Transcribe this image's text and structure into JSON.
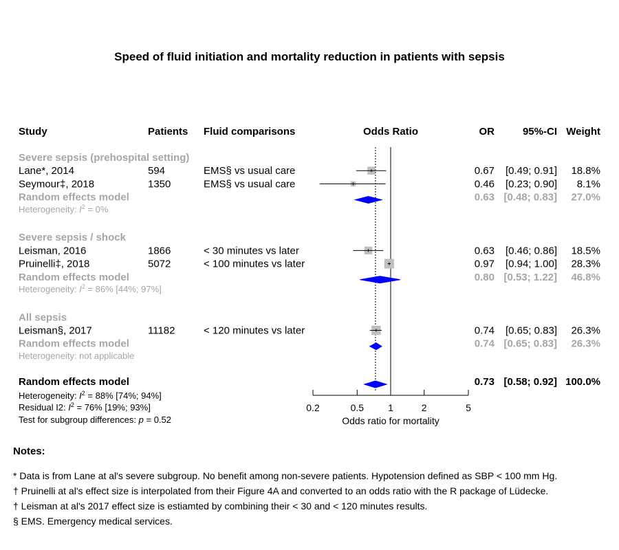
{
  "chart_data": {
    "type": "forest",
    "title": "Speed of fluid initiation and mortality reduction in patients with sepsis",
    "columns": {
      "study": "Study",
      "patients": "Patients",
      "comparison": "Fluid comparisons",
      "plot": "Odds Ratio",
      "or": "OR",
      "ci": "95%-CI",
      "weight": "Weight"
    },
    "xlabel": "Odds ratio for mortality",
    "xscale": "log",
    "xticks": [
      "0.2",
      "0.5",
      "1",
      "2",
      "5"
    ],
    "xlim": [
      0.2,
      5
    ],
    "reference_line": 1,
    "overall_line": 0.73,
    "subgroups": [
      {
        "label": "Severe sepsis (prehospital setting)",
        "studies": [
          {
            "study": "Lane*, 2014",
            "patients": "594",
            "comparison": "EMS§ vs usual care",
            "or": 0.67,
            "lower": 0.49,
            "upper": 0.91,
            "or_text": "0.67",
            "ci_text": "[0.49; 0.91]",
            "weight_text": "18.8%"
          },
          {
            "study": "Seymour‡, 2018",
            "patients": "1350",
            "comparison": "EMS§ vs usual care",
            "or": 0.46,
            "lower": 0.23,
            "upper": 0.9,
            "or_text": "0.46",
            "ci_text": "[0.23; 0.90]",
            "weight_text": "8.1%"
          }
        ],
        "model": {
          "label": "Random effects model",
          "or": 0.63,
          "lower": 0.48,
          "upper": 0.83,
          "or_text": "0.63",
          "ci_text": "[0.48; 0.83]",
          "weight_text": "27.0%"
        },
        "heterogeneity": {
          "prefix": "Heterogeneity: ",
          "var": "I",
          "sup": "2",
          "rest": " = 0%"
        }
      },
      {
        "label": "Severe sepsis / shock",
        "studies": [
          {
            "study": "Leisman, 2016",
            "patients": "1866",
            "comparison": "< 30 minutes vs later",
            "or": 0.63,
            "lower": 0.46,
            "upper": 0.86,
            "or_text": "0.63",
            "ci_text": "[0.46; 0.86]",
            "weight_text": "18.5%"
          },
          {
            "study": "Pruinelli‡, 2018",
            "patients": "5072",
            "comparison": "< 100 minutes vs later",
            "or": 0.97,
            "lower": 0.94,
            "upper": 1.0,
            "or_text": "0.97",
            "ci_text": "[0.94; 1.00]",
            "weight_text": "28.3%"
          }
        ],
        "model": {
          "label": "Random effects model",
          "or": 0.8,
          "lower": 0.53,
          "upper": 1.22,
          "or_text": "0.80",
          "ci_text": "[0.53; 1.22]",
          "weight_text": "46.8%"
        },
        "heterogeneity": {
          "prefix": "Heterogeneity: ",
          "var": "I",
          "sup": "2",
          "rest": " = 86% [44%; 97%]"
        }
      },
      {
        "label": "All sepsis",
        "studies": [
          {
            "study": "Leisman§, 2017",
            "patients": "11182",
            "comparison": "< 120 minutes vs later",
            "or": 0.74,
            "lower": 0.65,
            "upper": 0.83,
            "or_text": "0.74",
            "ci_text": "[0.65; 0.83]",
            "weight_text": "26.3%"
          }
        ],
        "model": {
          "label": "Random effects model",
          "or": 0.74,
          "lower": 0.65,
          "upper": 0.83,
          "or_text": "0.74",
          "ci_text": "[0.65; 0.83]",
          "weight_text": "26.3%"
        },
        "heterogeneity": {
          "text": "Heterogeneity: not applicable"
        }
      }
    ],
    "overall": {
      "label": "Random effects model",
      "or": 0.73,
      "lower": 0.58,
      "upper": 0.92,
      "or_text": "0.73",
      "ci_text": "[0.58; 0.92]",
      "weight_text": "100.0%",
      "heterogeneity": {
        "prefix": "Heterogeneity: ",
        "var": "I",
        "sup": "2",
        "rest": " = 88% [74%; 94%]"
      },
      "residual": {
        "prefix": "Residual I2: ",
        "var": "I",
        "sup": "2",
        "rest": " = 76% [19%; 93%]"
      },
      "subgroup_test": {
        "prefix": "Test for subgroup differences:  ",
        "var": "p",
        "rest": " = 0.52"
      }
    },
    "colors": {
      "text": "#000000",
      "subgroup_gray": "#a6a6a6",
      "box": "#bfbfbf",
      "diamond": "#0000ff"
    }
  },
  "notes": {
    "title": "Notes:",
    "items": [
      "* Data is from Lane at al's severe subgroup. No benefit among non-severe patients. Hypotension defined as SBP < 100 mm Hg.",
      "† Pruinelli at al's effect size is interpolated from their Figure 4A and converted to an odds ratio with the R package of Lüdecke.",
      "† Leisman at al's 2017 effect size is estiamted by combining their < 30 and < 120 minutes results.",
      "§ EMS. Emergency medical services."
    ]
  }
}
